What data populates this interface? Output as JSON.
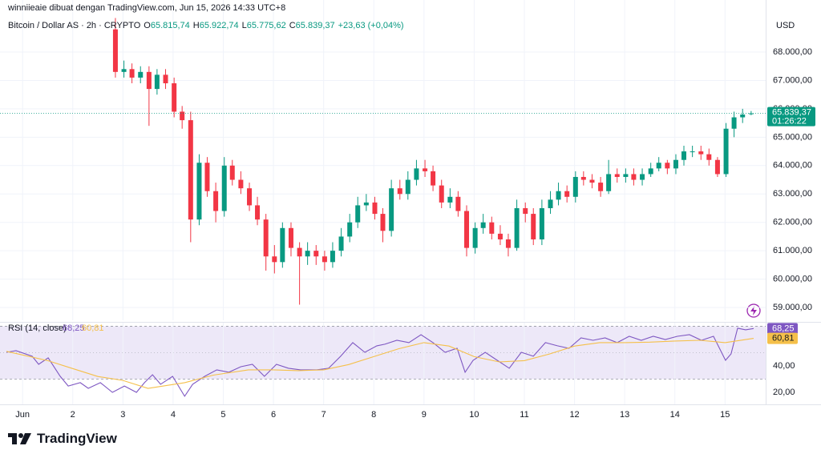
{
  "header": "winniieaie dibuat dengan TradingView.com, Jun 15, 2026 14:33 UTC+8",
  "footer": "TradingView",
  "chart_data": [
    {
      "type": "candlestick",
      "title": "Bitcoin / Dollar AS · 2h · CRYPTO",
      "ohlc": [
        {
          "key": "O",
          "value": "65.815,74"
        },
        {
          "key": "H",
          "value": "65.922,74"
        },
        {
          "key": "L",
          "value": "65.775,62"
        },
        {
          "key": "C",
          "value": "65.839,37"
        }
      ],
      "change": "+23,63 (+0,04%)",
      "y_unit": "USD",
      "countdown": "01:26:22",
      "up_color": "#089981",
      "down_color": "#f23645",
      "grid": true,
      "x": [
        2.85,
        3.02,
        3.18,
        3.35,
        3.52,
        3.68,
        3.85,
        4.02,
        4.18,
        4.35,
        4.52,
        4.68,
        4.85,
        5.02,
        5.18,
        5.35,
        5.52,
        5.68,
        5.85,
        6.02,
        6.18,
        6.35,
        6.52,
        6.68,
        6.85,
        7.02,
        7.18,
        7.35,
        7.52,
        7.68,
        7.85,
        8.02,
        8.18,
        8.35,
        8.52,
        8.68,
        8.85,
        9.02,
        9.18,
        9.35,
        9.52,
        9.68,
        9.85,
        10.02,
        10.18,
        10.35,
        10.52,
        10.68,
        10.85,
        11.02,
        11.18,
        11.35,
        11.52,
        11.68,
        11.85,
        12.02,
        12.18,
        12.35,
        12.52,
        12.68,
        12.85,
        13.02,
        13.18,
        13.35,
        13.52,
        13.68,
        13.85,
        14.02,
        14.18,
        14.35,
        14.52,
        14.68,
        14.85,
        15.02,
        15.18,
        15.35,
        15.52
      ],
      "open": [
        68800,
        67300,
        67400,
        67100,
        67300,
        66700,
        67200,
        66900,
        65900,
        65600,
        62100,
        64100,
        63100,
        62400,
        64000,
        63500,
        63200,
        62600,
        62100,
        60800,
        60600,
        61800,
        61100,
        60800,
        61000,
        60800,
        60600,
        61000,
        61500,
        62000,
        62600,
        62700,
        62300,
        61700,
        63200,
        63000,
        63500,
        63900,
        63800,
        63300,
        62700,
        62900,
        62400,
        61100,
        61800,
        62000,
        61600,
        61400,
        61100,
        62500,
        62300,
        61400,
        62500,
        62800,
        63100,
        62900,
        63600,
        63500,
        63400,
        63100,
        63700,
        63600,
        63700,
        63500,
        63700,
        63900,
        64100,
        63900,
        64200,
        64500,
        64500,
        64400,
        64200,
        63700,
        65300,
        65700,
        65815.74
      ],
      "high": [
        69200,
        67700,
        67600,
        67500,
        67500,
        67400,
        67400,
        67100,
        66100,
        65900,
        64400,
        64300,
        63400,
        64300,
        64200,
        63800,
        63400,
        62900,
        62300,
        61200,
        62000,
        62000,
        61300,
        61300,
        61200,
        61000,
        61300,
        61800,
        62300,
        62900,
        63000,
        62900,
        62500,
        63500,
        63500,
        63800,
        64200,
        64200,
        64000,
        63500,
        63200,
        63100,
        62600,
        62000,
        62300,
        62200,
        61900,
        61600,
        62800,
        62700,
        62500,
        62800,
        63100,
        63400,
        63300,
        63800,
        63800,
        63700,
        63600,
        64200,
        63900,
        63900,
        63900,
        63900,
        64100,
        64300,
        64200,
        64400,
        64700,
        64700,
        64700,
        64600,
        64300,
        65500,
        65900,
        66000,
        65922.74
      ],
      "low": [
        67100,
        67100,
        66900,
        66900,
        65400,
        66500,
        66700,
        65700,
        65300,
        61300,
        61900,
        62900,
        62000,
        62200,
        63300,
        63000,
        62400,
        61900,
        60300,
        60200,
        60400,
        60800,
        59100,
        60500,
        60500,
        60300,
        60400,
        60800,
        61300,
        61800,
        62400,
        62100,
        61300,
        61500,
        62800,
        62800,
        63300,
        63600,
        63100,
        62500,
        62500,
        62200,
        60800,
        60900,
        61600,
        61400,
        61200,
        60800,
        61000,
        62000,
        61200,
        61200,
        62300,
        62600,
        62700,
        62700,
        63300,
        63200,
        62900,
        63000,
        63400,
        63400,
        63300,
        63300,
        63600,
        63800,
        63700,
        63700,
        64000,
        64300,
        64200,
        64000,
        63600,
        63600,
        65000,
        65500,
        65775.62
      ],
      "close": [
        67300,
        67400,
        67100,
        67300,
        66700,
        67200,
        66900,
        65900,
        65600,
        62100,
        64100,
        63100,
        62400,
        64000,
        63500,
        63200,
        62600,
        62100,
        60800,
        60600,
        61800,
        61100,
        60800,
        61000,
        60800,
        60600,
        61000,
        61500,
        62000,
        62600,
        62700,
        62300,
        61700,
        63200,
        63000,
        63500,
        63900,
        63800,
        63300,
        62700,
        62900,
        62400,
        61100,
        61800,
        62000,
        61600,
        61400,
        61100,
        62500,
        62300,
        61400,
        62500,
        62800,
        63100,
        62900,
        63600,
        63500,
        63400,
        63100,
        63700,
        63600,
        63700,
        63500,
        63700,
        63900,
        64100,
        63900,
        64200,
        64500,
        64500,
        64400,
        64200,
        63700,
        65300,
        65700,
        65800,
        65839.37
      ],
      "xlim": [
        0.55,
        15.81
      ],
      "xticks": [
        {
          "value": 1,
          "label": "Jun"
        },
        2,
        3,
        4,
        5,
        6,
        7,
        8,
        9,
        10,
        11,
        12,
        13,
        14,
        15
      ],
      "ylim": [
        58550,
        69270
      ],
      "yticks": [
        {
          "value": 59000,
          "label": "59.000,00"
        },
        {
          "value": 60000,
          "label": "60.000,00"
        },
        {
          "value": 61000,
          "label": "61.000,00"
        },
        {
          "value": 62000,
          "label": "62.000,00"
        },
        {
          "value": 63000,
          "label": "63.000,00"
        },
        {
          "value": 64000,
          "label": "64.000,00"
        },
        {
          "value": 65000,
          "label": "65.000,00"
        },
        {
          "value": 66000,
          "label": "66.000,00"
        },
        {
          "value": 67000,
          "label": "67.000,00"
        },
        {
          "value": 68000,
          "label": "68.000,00"
        }
      ]
    },
    {
      "type": "line",
      "title": "RSI (14, close)",
      "band": [
        30,
        70
      ],
      "midline": 50,
      "band_color": "#ede8f8",
      "series": [
        {
          "color": "#7e57c2",
          "last_label": "68,25",
          "x": [
            0.68,
            0.87,
            1.19,
            1.32,
            1.51,
            1.75,
            1.91,
            2.15,
            2.31,
            2.55,
            2.79,
            3.03,
            3.27,
            3.43,
            3.59,
            3.75,
            3.99,
            4.23,
            4.39,
            4.63,
            4.87,
            5.11,
            5.35,
            5.58,
            5.82,
            6.06,
            6.3,
            6.54,
            6.86,
            7.1,
            7.34,
            7.58,
            7.82,
            8.06,
            8.22,
            8.46,
            8.7,
            8.94,
            9.18,
            9.42,
            9.66,
            9.82,
            9.98,
            10.22,
            10.46,
            10.7,
            10.94,
            11.18,
            11.42,
            11.66,
            11.89,
            12.13,
            12.37,
            12.61,
            12.85,
            13.09,
            13.33,
            13.57,
            13.81,
            14.05,
            14.29,
            14.53,
            14.77,
            15.01,
            15.12,
            15.25,
            15.41,
            15.57
          ],
          "values": [
            50.3,
            51.5,
            47.3,
            41.2,
            46.1,
            32.1,
            24.8,
            27.3,
            23.0,
            27.3,
            20.0,
            24.8,
            20.0,
            27.3,
            33.3,
            26.1,
            32.1,
            17.0,
            26.1,
            32.1,
            37.0,
            35.2,
            39.4,
            41.2,
            32.1,
            41.2,
            38.2,
            37.0,
            37.0,
            38.2,
            47.3,
            57.6,
            50.3,
            55.2,
            56.4,
            59.4,
            57.6,
            63.6,
            57.6,
            50.3,
            53.3,
            35.2,
            44.2,
            50.3,
            44.2,
            38.2,
            50.3,
            47.3,
            57.6,
            55.2,
            53.3,
            61.2,
            59.4,
            61.2,
            57.6,
            62.4,
            59.4,
            62.4,
            60.0,
            62.4,
            63.6,
            59.4,
            62.4,
            44.2,
            49.1,
            68.5,
            67.3,
            68.25
          ]
        },
        {
          "color": "#f5c04a",
          "last_label": "60,81",
          "x": [
            0.68,
            1.5,
            2.0,
            2.5,
            3.0,
            3.5,
            4.23,
            4.8,
            5.5,
            6.0,
            6.5,
            7.0,
            7.5,
            8.0,
            8.5,
            9.0,
            9.5,
            10.0,
            10.5,
            11.0,
            11.5,
            12.0,
            12.5,
            13.0,
            13.5,
            14.0,
            14.5,
            15.0,
            15.57
          ],
          "values": [
            51,
            44,
            38,
            32,
            29,
            23,
            27.3,
            33,
            37,
            37,
            36.4,
            37,
            41,
            47,
            53,
            57.6,
            55,
            47,
            43,
            44,
            49,
            55,
            57.6,
            57.6,
            58,
            58.8,
            59.4,
            57.6,
            60.81
          ]
        }
      ],
      "ylim": [
        10.9,
        72.7
      ],
      "yticks": [
        {
          "value": 20,
          "label": "20,00"
        },
        {
          "value": 40,
          "label": "40,00"
        }
      ]
    }
  ]
}
